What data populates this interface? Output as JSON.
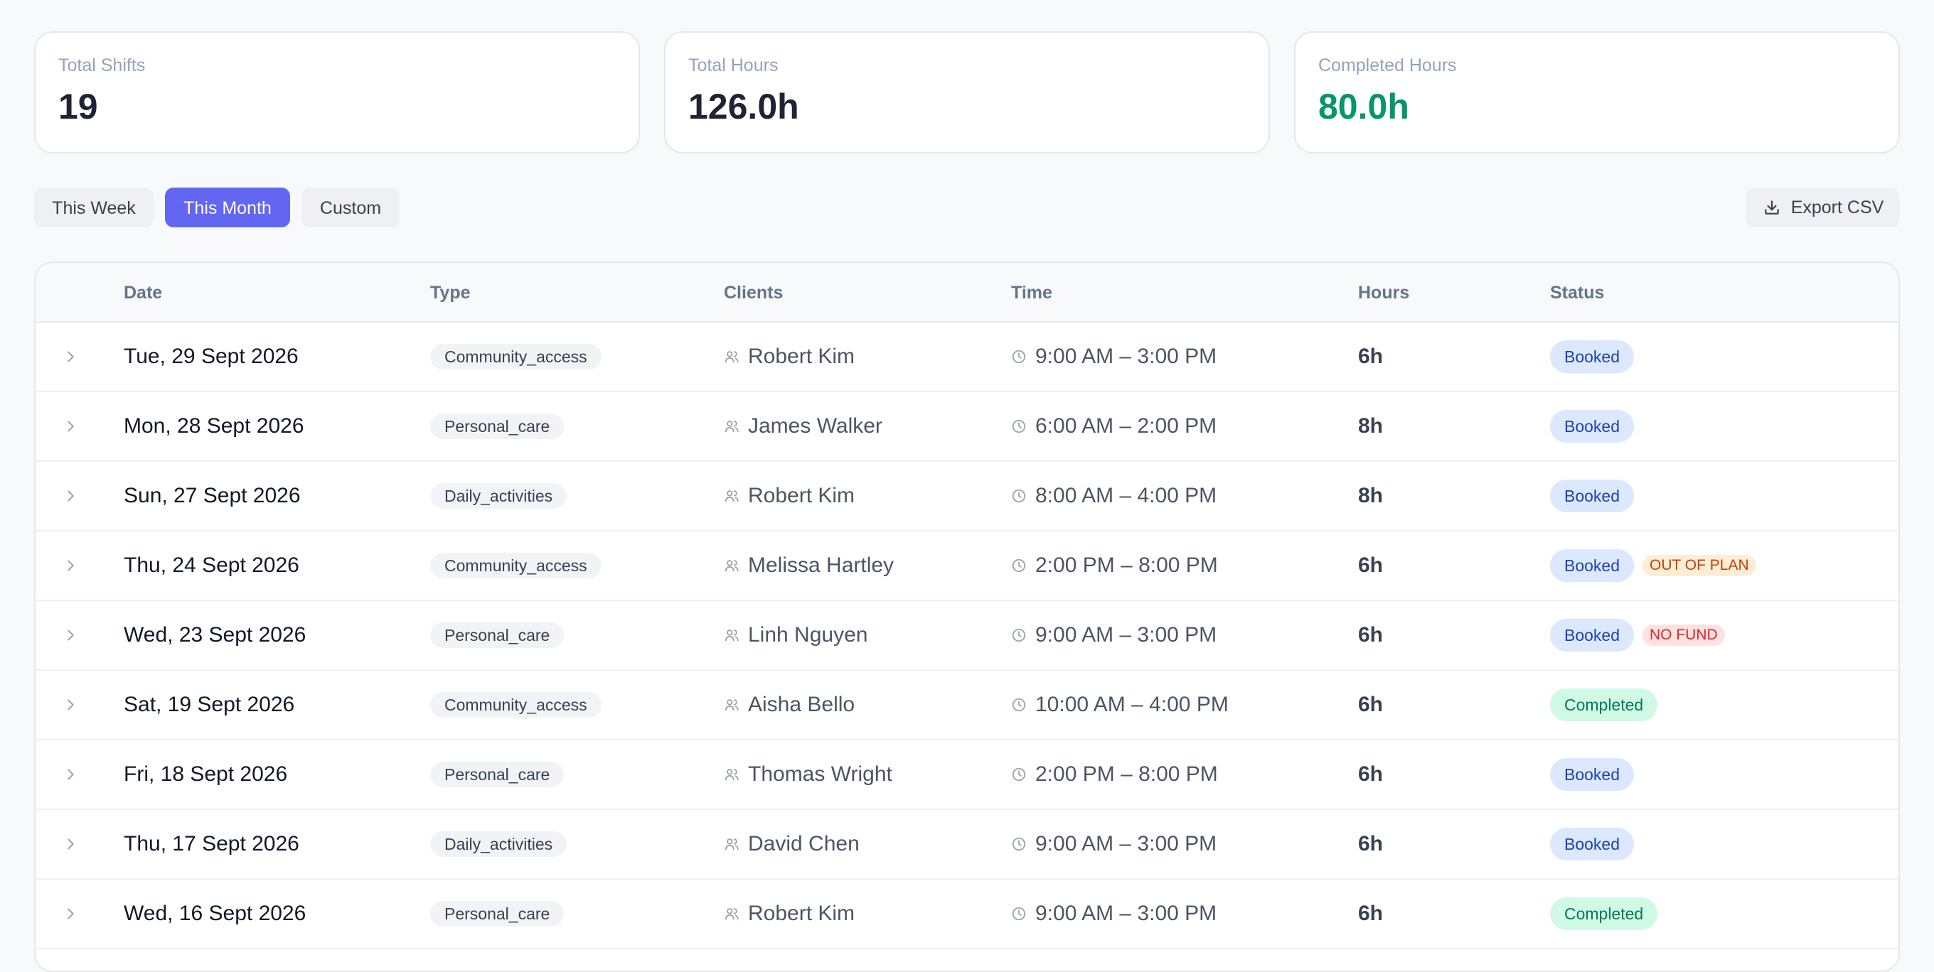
{
  "stats": [
    {
      "label": "Total Shifts",
      "value": "19"
    },
    {
      "label": "Total Hours",
      "value": "126.0h"
    },
    {
      "label": "Completed Hours",
      "value": "80.0h",
      "accent": "#059669"
    }
  ],
  "filters": {
    "week": "This Week",
    "month": "This Month",
    "custom": "Custom",
    "active": "This Month",
    "export_label": "Export CSV"
  },
  "table": {
    "headers": {
      "date": "Date",
      "type": "Type",
      "clients": "Clients",
      "time": "Time",
      "hours": "Hours",
      "status": "Status"
    },
    "rows": [
      {
        "date": "Tue, 29 Sept 2026",
        "type": "Community_access",
        "client": "Robert Kim",
        "time": "9:00 AM – 3:00 PM",
        "hours": "6h",
        "status": "Booked",
        "flag": ""
      },
      {
        "date": "Mon, 28 Sept 2026",
        "type": "Personal_care",
        "client": "James Walker",
        "time": "6:00 AM – 2:00 PM",
        "hours": "8h",
        "status": "Booked",
        "flag": ""
      },
      {
        "date": "Sun, 27 Sept 2026",
        "type": "Daily_activities",
        "client": "Robert Kim",
        "time": "8:00 AM – 4:00 PM",
        "hours": "8h",
        "status": "Booked",
        "flag": ""
      },
      {
        "date": "Thu, 24 Sept 2026",
        "type": "Community_access",
        "client": "Melissa Hartley",
        "time": "2:00 PM – 8:00 PM",
        "hours": "6h",
        "status": "Booked",
        "flag": "OUT OF PLAN"
      },
      {
        "date": "Wed, 23 Sept 2026",
        "type": "Personal_care",
        "client": "Linh Nguyen",
        "time": "9:00 AM – 3:00 PM",
        "hours": "6h",
        "status": "Booked",
        "flag": "NO FUND"
      },
      {
        "date": "Sat, 19 Sept 2026",
        "type": "Community_access",
        "client": "Aisha Bello",
        "time": "10:00 AM – 4:00 PM",
        "hours": "6h",
        "status": "Completed",
        "flag": ""
      },
      {
        "date": "Fri, 18 Sept 2026",
        "type": "Personal_care",
        "client": "Thomas Wright",
        "time": "2:00 PM – 8:00 PM",
        "hours": "6h",
        "status": "Booked",
        "flag": ""
      },
      {
        "date": "Thu, 17 Sept 2026",
        "type": "Daily_activities",
        "client": "David Chen",
        "time": "9:00 AM – 3:00 PM",
        "hours": "6h",
        "status": "Booked",
        "flag": ""
      },
      {
        "date": "Wed, 16 Sept 2026",
        "type": "Personal_care",
        "client": "Robert Kim",
        "time": "9:00 AM – 3:00 PM",
        "hours": "6h",
        "status": "Completed",
        "flag": ""
      }
    ]
  },
  "colors": {
    "accent": "#6366f1",
    "completed": "#059669",
    "booked_bg": "#dbe8fe",
    "completed_bg": "#d1fae5"
  },
  "icons": {
    "row_toggle": "chevron-right-icon",
    "client": "users-icon",
    "time": "clock-icon",
    "export": "download-icon"
  }
}
